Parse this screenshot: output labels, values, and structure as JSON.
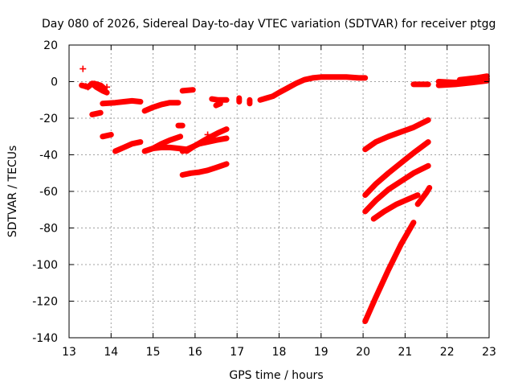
{
  "chart_data": {
    "type": "scatter",
    "title": "Day 080 of 2026, Sidereal Day-to-day VTEC variation (SDTVAR) for receiver ptgg",
    "xlabel": "GPS time / hours",
    "ylabel": "SDTVAR / TECUs",
    "xlim": [
      13,
      23
    ],
    "ylim": [
      -140,
      20
    ],
    "xticks": [
      13,
      14,
      15,
      16,
      17,
      18,
      19,
      20,
      21,
      22,
      23
    ],
    "yticks": [
      20,
      0,
      -20,
      -40,
      -60,
      -80,
      -100,
      -120,
      -140
    ],
    "grid": true,
    "marker": "+",
    "color": "#ff0000",
    "series": [
      {
        "name": "s01",
        "points": [
          [
            13.3,
            -2
          ],
          [
            13.45,
            -3
          ],
          [
            13.55,
            -1
          ],
          [
            13.65,
            -3
          ],
          [
            13.8,
            -5
          ],
          [
            13.9,
            -6
          ]
        ]
      },
      {
        "name": "s02",
        "points": [
          [
            13.6,
            -1
          ],
          [
            13.75,
            -2
          ],
          [
            13.85,
            -4
          ]
        ]
      },
      {
        "name": "s03",
        "points": [
          [
            13.55,
            -18
          ],
          [
            13.75,
            -17
          ]
        ]
      },
      {
        "name": "s04",
        "points": [
          [
            13.8,
            -12
          ],
          [
            14.1,
            -11.5
          ],
          [
            14.3,
            -11
          ],
          [
            14.5,
            -10.5
          ],
          [
            14.7,
            -11
          ]
        ]
      },
      {
        "name": "s05",
        "points": [
          [
            13.8,
            -30
          ],
          [
            14.0,
            -29
          ]
        ]
      },
      {
        "name": "s06",
        "points": [
          [
            14.1,
            -38
          ],
          [
            14.3,
            -36
          ],
          [
            14.5,
            -34
          ],
          [
            14.7,
            -33
          ]
        ]
      },
      {
        "name": "s07",
        "points": [
          [
            14.8,
            -16
          ],
          [
            15.0,
            -14
          ],
          [
            15.2,
            -12.5
          ],
          [
            15.4,
            -11.5
          ],
          [
            15.6,
            -11.5
          ]
        ]
      },
      {
        "name": "s08",
        "points": [
          [
            14.8,
            -38
          ],
          [
            15.0,
            -36.5
          ],
          [
            15.2,
            -36
          ],
          [
            15.4,
            -36
          ],
          [
            15.6,
            -36.5
          ],
          [
            15.8,
            -37
          ]
        ]
      },
      {
        "name": "s09",
        "points": [
          [
            15.0,
            -36.5
          ],
          [
            15.2,
            -34
          ],
          [
            15.4,
            -32
          ],
          [
            15.65,
            -30
          ]
        ]
      },
      {
        "name": "s10",
        "points": [
          [
            15.6,
            -24
          ],
          [
            15.7,
            -24
          ]
        ]
      },
      {
        "name": "s11",
        "points": [
          [
            15.7,
            -5
          ],
          [
            15.95,
            -4.5
          ]
        ]
      },
      {
        "name": "s12",
        "points": [
          [
            15.7,
            -51
          ],
          [
            15.9,
            -50
          ],
          [
            16.1,
            -49.5
          ],
          [
            16.3,
            -48.5
          ],
          [
            16.5,
            -47
          ],
          [
            16.75,
            -45
          ]
        ]
      },
      {
        "name": "s13",
        "points": [
          [
            15.7,
            -38
          ],
          [
            15.9,
            -36
          ],
          [
            16.1,
            -34
          ],
          [
            16.3,
            -33
          ],
          [
            16.5,
            -32
          ],
          [
            16.75,
            -31
          ]
        ]
      },
      {
        "name": "s14",
        "points": [
          [
            15.8,
            -38
          ],
          [
            16.0,
            -35
          ],
          [
            16.3,
            -31
          ],
          [
            16.55,
            -28
          ],
          [
            16.75,
            -26
          ]
        ]
      },
      {
        "name": "s15",
        "points": [
          [
            16.4,
            -9.5
          ],
          [
            16.55,
            -10
          ],
          [
            16.75,
            -10
          ]
        ]
      },
      {
        "name": "s16",
        "points": [
          [
            16.5,
            -13
          ],
          [
            16.6,
            -12
          ]
        ]
      },
      {
        "name": "s17",
        "points": [
          [
            16.3,
            -29
          ]
        ]
      },
      {
        "name": "s18",
        "points": [
          [
            17.05,
            -9
          ],
          [
            17.05,
            -11
          ]
        ]
      },
      {
        "name": "s19",
        "points": [
          [
            17.3,
            -10
          ],
          [
            17.3,
            -12
          ]
        ]
      },
      {
        "name": "s20",
        "points": [
          [
            17.55,
            -10
          ],
          [
            17.7,
            -9
          ],
          [
            17.85,
            -8
          ],
          [
            18.0,
            -6
          ],
          [
            18.2,
            -3.5
          ],
          [
            18.4,
            -1
          ],
          [
            18.6,
            1
          ],
          [
            18.8,
            2
          ],
          [
            19.0,
            2.5
          ],
          [
            19.3,
            2.5
          ],
          [
            19.6,
            2.5
          ],
          [
            19.9,
            2
          ],
          [
            20.05,
            2
          ]
        ]
      },
      {
        "name": "s21",
        "points": [
          [
            20.05,
            -37
          ],
          [
            20.3,
            -33
          ],
          [
            20.6,
            -30
          ],
          [
            20.9,
            -27.5
          ],
          [
            21.2,
            -25
          ],
          [
            21.55,
            -21
          ]
        ]
      },
      {
        "name": "s22",
        "points": [
          [
            20.05,
            -62
          ],
          [
            20.3,
            -56
          ],
          [
            20.6,
            -50
          ],
          [
            20.9,
            -44.5
          ],
          [
            21.2,
            -39
          ],
          [
            21.55,
            -33
          ]
        ]
      },
      {
        "name": "s23",
        "points": [
          [
            20.05,
            -71
          ],
          [
            20.3,
            -65
          ],
          [
            20.6,
            -59
          ],
          [
            20.9,
            -54.5
          ],
          [
            21.2,
            -50
          ],
          [
            21.55,
            -46
          ]
        ]
      },
      {
        "name": "s24",
        "points": [
          [
            20.25,
            -75
          ],
          [
            20.5,
            -71
          ],
          [
            20.8,
            -67
          ],
          [
            21.1,
            -64
          ],
          [
            21.3,
            -62
          ]
        ]
      },
      {
        "name": "s25",
        "points": [
          [
            20.05,
            -131
          ],
          [
            20.3,
            -118
          ],
          [
            20.6,
            -103
          ],
          [
            20.9,
            -89
          ],
          [
            21.2,
            -77
          ]
        ]
      },
      {
        "name": "s26",
        "points": [
          [
            21.3,
            -67
          ],
          [
            21.4,
            -64
          ],
          [
            21.5,
            -61
          ],
          [
            21.58,
            -58
          ]
        ]
      },
      {
        "name": "s27",
        "points": [
          [
            21.2,
            -1.5
          ],
          [
            21.55,
            -1.5
          ]
        ]
      },
      {
        "name": "s28",
        "points": [
          [
            21.8,
            0
          ],
          [
            22.2,
            -0.5
          ],
          [
            22.6,
            0.5
          ],
          [
            22.95,
            1.5
          ]
        ]
      },
      {
        "name": "s29",
        "points": [
          [
            21.8,
            -2
          ],
          [
            22.2,
            -1.5
          ],
          [
            22.6,
            -0.5
          ],
          [
            22.95,
            0.5
          ]
        ]
      },
      {
        "name": "s30",
        "points": [
          [
            22.3,
            1
          ],
          [
            22.7,
            2
          ],
          [
            22.95,
            3
          ]
        ]
      }
    ],
    "isolated_points": [
      [
        13.33,
        7
      ],
      [
        13.4,
        -2.5
      ],
      [
        13.45,
        -3
      ],
      [
        13.9,
        -3
      ],
      [
        16.3,
        -29
      ],
      [
        16.55,
        -12
      ]
    ]
  }
}
